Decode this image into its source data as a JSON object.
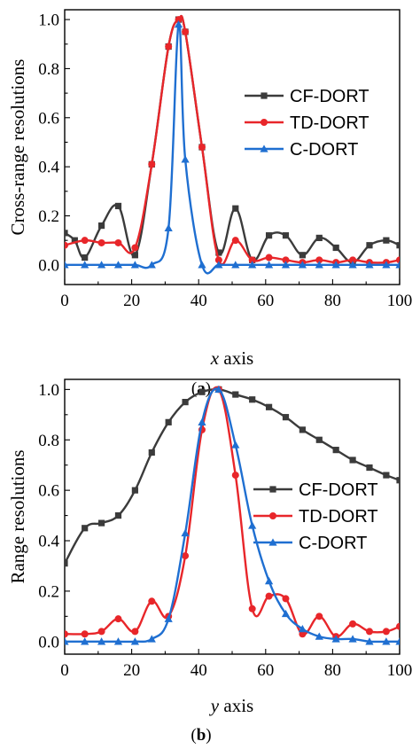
{
  "colors": {
    "CF-DORT": "#3b3b3b",
    "TD-DORT": "#e8262a",
    "C-DORT": "#1f6fd1"
  },
  "chart_data": [
    {
      "type": "line",
      "panel_label_open": "(",
      "panel_label_letter": "a",
      "panel_label_close": ")",
      "xlabel_var": "x",
      "xlabel_rest": " axis",
      "ylabel": "Cross-range resolutions",
      "xlim": [
        0,
        100
      ],
      "ylim": [
        -0.08,
        1.04
      ],
      "xticks": [
        "0",
        "20",
        "40",
        "60",
        "80",
        "100"
      ],
      "yticks": [
        "0.0",
        "0.2",
        "0.4",
        "0.6",
        "0.8",
        "1.0"
      ],
      "legend_position": "center-right",
      "series": [
        {
          "name": "CF-DORT",
          "marker": "square",
          "x": [
            0,
            3,
            6,
            11,
            16,
            21,
            26,
            31,
            34,
            36,
            41,
            46,
            51,
            56,
            61,
            66,
            71,
            76,
            81,
            86,
            91,
            96,
            100
          ],
          "y": [
            0.13,
            0.1,
            0.03,
            0.16,
            0.24,
            0.04,
            0.41,
            0.89,
            1.0,
            0.95,
            0.48,
            0.05,
            0.23,
            0.02,
            0.12,
            0.12,
            0.04,
            0.11,
            0.07,
            0.01,
            0.08,
            0.1,
            0.08
          ]
        },
        {
          "name": "TD-DORT",
          "marker": "circle",
          "x": [
            0,
            6,
            11,
            16,
            21,
            26,
            31,
            34,
            36,
            41,
            46,
            51,
            56,
            61,
            66,
            71,
            76,
            81,
            86,
            91,
            96,
            100
          ],
          "y": [
            0.08,
            0.1,
            0.09,
            0.09,
            0.07,
            0.41,
            0.89,
            1.0,
            0.95,
            0.48,
            0.02,
            0.1,
            0.02,
            0.03,
            0.02,
            0.01,
            0.02,
            0.01,
            0.02,
            0.01,
            0.01,
            0.02
          ]
        },
        {
          "name": "C-DORT",
          "marker": "triangle",
          "x": [
            0,
            6,
            11,
            16,
            21,
            26,
            31,
            34,
            36,
            41,
            46,
            51,
            56,
            61,
            66,
            71,
            76,
            81,
            86,
            91,
            96,
            100
          ],
          "y": [
            0,
            0,
            0,
            0,
            0,
            0,
            0.15,
            0.98,
            0.43,
            0,
            0,
            0,
            0,
            0,
            0,
            0,
            0,
            0,
            0,
            0,
            0,
            0
          ]
        }
      ]
    },
    {
      "type": "line",
      "panel_label_open": "(",
      "panel_label_letter": "b",
      "panel_label_close": ")",
      "xlabel_var": "y",
      "xlabel_rest": " axis",
      "ylabel": "Range resolutions",
      "xlim": [
        0,
        100
      ],
      "ylim": [
        -0.05,
        1.04
      ],
      "xticks": [
        "0",
        "20",
        "40",
        "60",
        "80",
        "100"
      ],
      "yticks": [
        "0.0",
        "0.2",
        "0.4",
        "0.6",
        "0.8",
        "1.0"
      ],
      "legend_position": "center-right",
      "series": [
        {
          "name": "CF-DORT",
          "marker": "square",
          "x": [
            0,
            6,
            11,
            16,
            21,
            26,
            31,
            36,
            41,
            46,
            51,
            56,
            61,
            66,
            71,
            76,
            81,
            86,
            91,
            96,
            100
          ],
          "y": [
            0.31,
            0.45,
            0.47,
            0.5,
            0.6,
            0.75,
            0.87,
            0.95,
            0.99,
            1.0,
            0.98,
            0.96,
            0.93,
            0.89,
            0.84,
            0.8,
            0.76,
            0.72,
            0.69,
            0.66,
            0.64
          ]
        },
        {
          "name": "TD-DORT",
          "marker": "circle",
          "x": [
            0,
            6,
            11,
            16,
            21,
            26,
            31,
            36,
            41,
            46,
            51,
            56,
            61,
            66,
            71,
            76,
            81,
            86,
            91,
            96,
            100
          ],
          "y": [
            0.03,
            0.03,
            0.04,
            0.09,
            0.04,
            0.16,
            0.1,
            0.34,
            0.84,
            1.0,
            0.66,
            0.13,
            0.18,
            0.17,
            0.03,
            0.1,
            0.02,
            0.07,
            0.04,
            0.04,
            0.06
          ]
        },
        {
          "name": "C-DORT",
          "marker": "triangle",
          "x": [
            0,
            6,
            11,
            16,
            21,
            26,
            31,
            36,
            41,
            46,
            51,
            56,
            61,
            66,
            71,
            76,
            81,
            86,
            91,
            96,
            100
          ],
          "y": [
            0,
            0,
            0,
            0,
            0,
            0.01,
            0.09,
            0.43,
            0.87,
            1.0,
            0.78,
            0.46,
            0.24,
            0.11,
            0.05,
            0.02,
            0.01,
            0.01,
            0.0,
            0.0,
            0.0
          ]
        }
      ]
    }
  ]
}
